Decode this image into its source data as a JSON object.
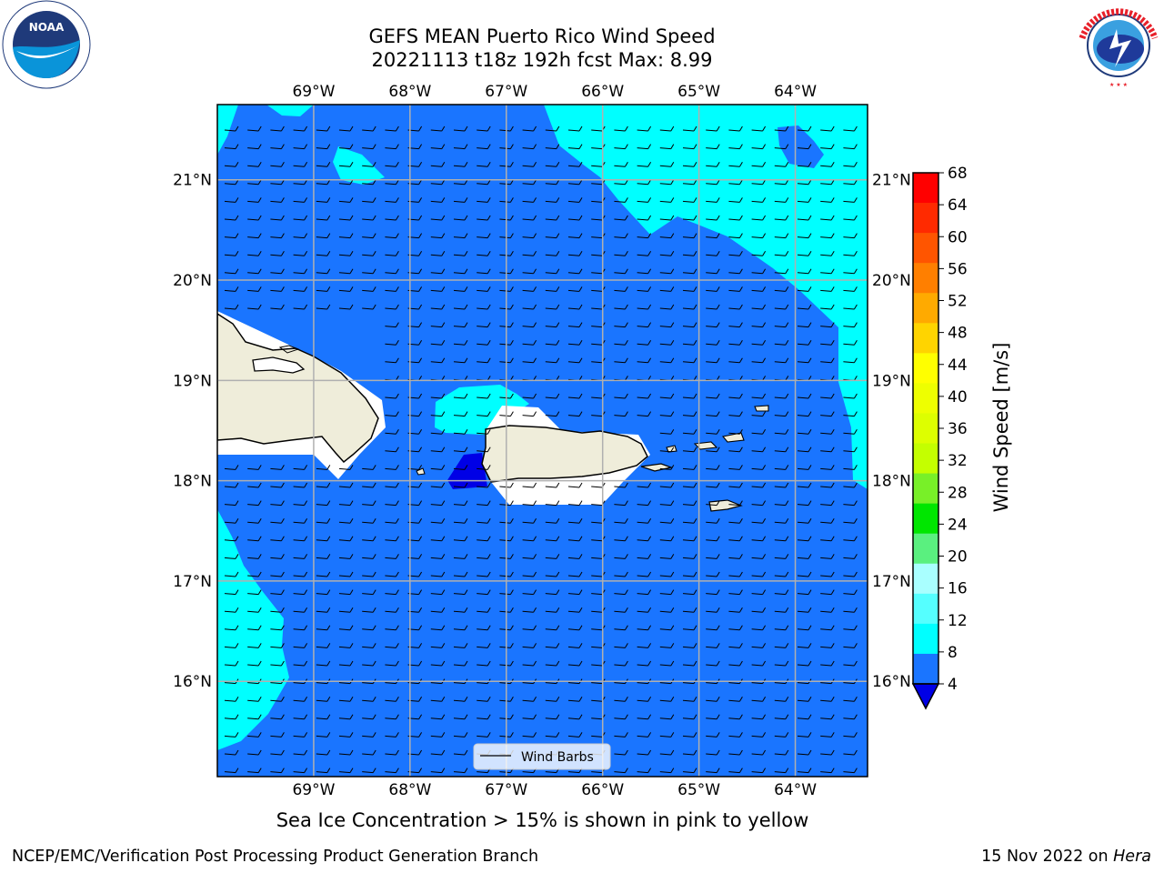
{
  "header": {
    "title_line1": "GEFS MEAN Puerto Rico Wind Speed",
    "title_line2": "20221113 t18z 192h fcst   Max: 8.99"
  },
  "logos": {
    "noaa": {
      "label": "NOAA",
      "ring_text": "NATIONAL OCEANIC AND ATMOSPHERIC ADMINISTRATION · U.S. DEPARTMENT OF COMMERCE"
    },
    "nws": {
      "ring_text": "NATIONAL WEATHER SERVICE"
    }
  },
  "map": {
    "lon_labels": [
      "69°W",
      "68°W",
      "67°W",
      "66°W",
      "65°W",
      "64°W"
    ],
    "lat_labels": [
      "21°N",
      "20°N",
      "19°N",
      "18°N",
      "17°N",
      "16°N"
    ],
    "lon_range": [
      -70.0,
      -63.25
    ],
    "lat_range": [
      15.05,
      21.75
    ],
    "legend_label": "Wind Barbs",
    "colors": {
      "ocean_4_8": "#1a75ff",
      "speed_8_12": "#00ffff",
      "speed_below_4": "#0000e6",
      "land": "#efedda",
      "grid": "#b0b0b0"
    }
  },
  "colorbar": {
    "label": "Wind Speed [m/s]",
    "ticks": [
      "68",
      "64",
      "60",
      "56",
      "52",
      "48",
      "44",
      "40",
      "36",
      "32",
      "28",
      "24",
      "20",
      "16",
      "12",
      "8",
      "4"
    ],
    "colors_top_to_bottom": [
      "#ff0000",
      "#ff2a00",
      "#ff5500",
      "#ff7f00",
      "#ffaa00",
      "#ffd400",
      "#ffff00",
      "#eeff00",
      "#ddff00",
      "#c4ff00",
      "#78f028",
      "#00e600",
      "#5af07f",
      "#a9ffff",
      "#55ffff",
      "#00ffff",
      "#1a75ff"
    ],
    "under_color": "#0000e6"
  },
  "subtitle": "Sea Ice Concentration > 15% is shown in pink to yellow",
  "footer": {
    "credit": "NCEP/EMC/Verification Post Processing Product Generation Branch",
    "date": "15 Nov 2022 on ",
    "machine": "Hera"
  }
}
